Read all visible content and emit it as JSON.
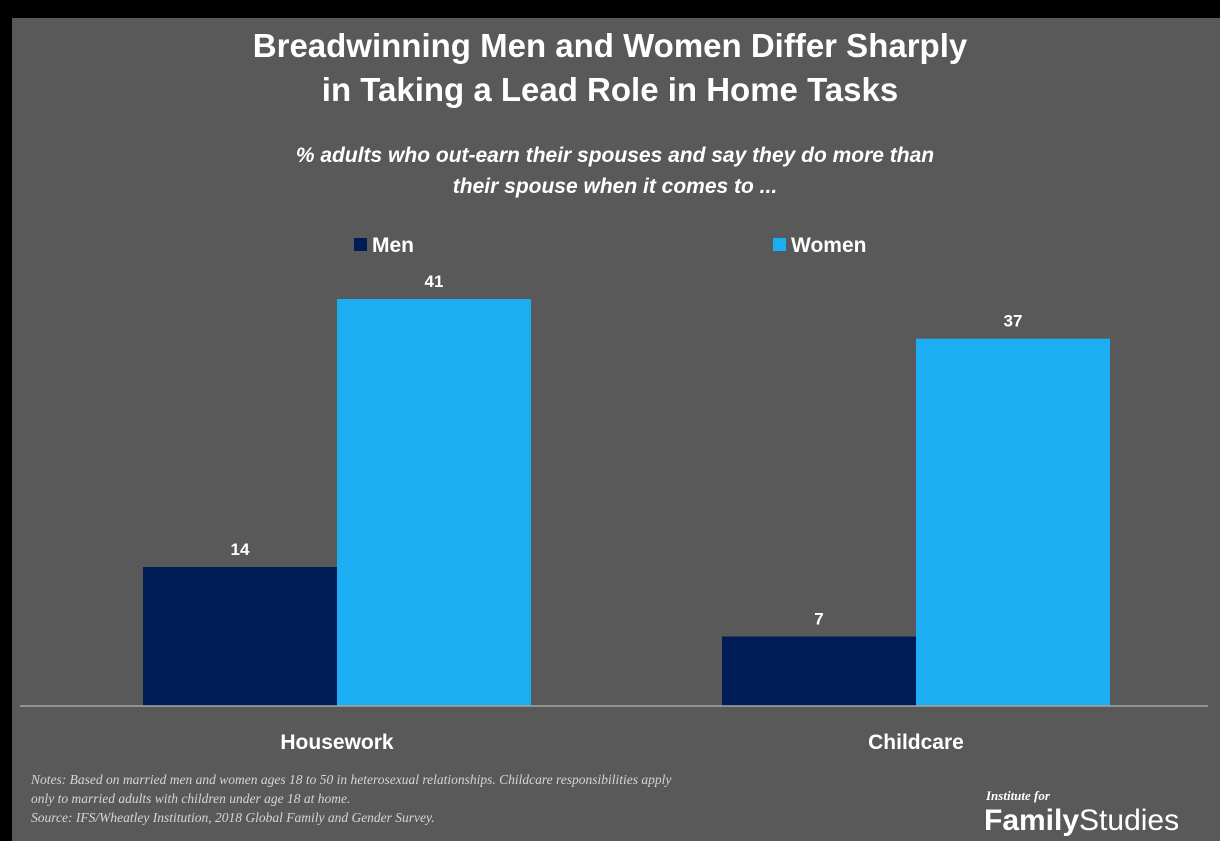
{
  "title_lines": [
    "Breadwinning Men and Women Differ Sharply",
    "in Taking a Lead Role in Home Tasks"
  ],
  "subtitle_lines": [
    "% adults who out-earn their spouses and say they do more than",
    "their spouse when it comes to ..."
  ],
  "chart_data": {
    "type": "bar",
    "title": "Breadwinning Men and Women Differ Sharply in Taking a Lead Role in Home Tasks",
    "subtitle": "% adults who out-earn their spouses and say they do more than their spouse when it comes to ...",
    "categories": [
      "Housework",
      "Childcare"
    ],
    "series": [
      {
        "name": "Men",
        "values": [
          14,
          7
        ],
        "color": "#001c57"
      },
      {
        "name": "Women",
        "values": [
          41,
          37
        ],
        "color": "#1cadf2"
      }
    ],
    "xlabel": "",
    "ylabel": "",
    "ylim": [
      0,
      41
    ],
    "grid": false,
    "axis_visible": false,
    "legend_position": "top"
  },
  "notes_lines": [
    "Notes: Based on married men and women ages 18 to 50 in heterosexual relationships. Childcare responsibilities apply",
    "only to married adults with children under age 18 at home.",
    "Source:  IFS/Wheatley Institution, 2018 Global Family and Gender Survey."
  ],
  "logo": {
    "small_text": "Institute for",
    "big_text_bold": "Family",
    "big_text_light": "Studies"
  },
  "colors": {
    "background": "#595959",
    "text": "#ffffff",
    "axis": "#a6a6a6"
  }
}
